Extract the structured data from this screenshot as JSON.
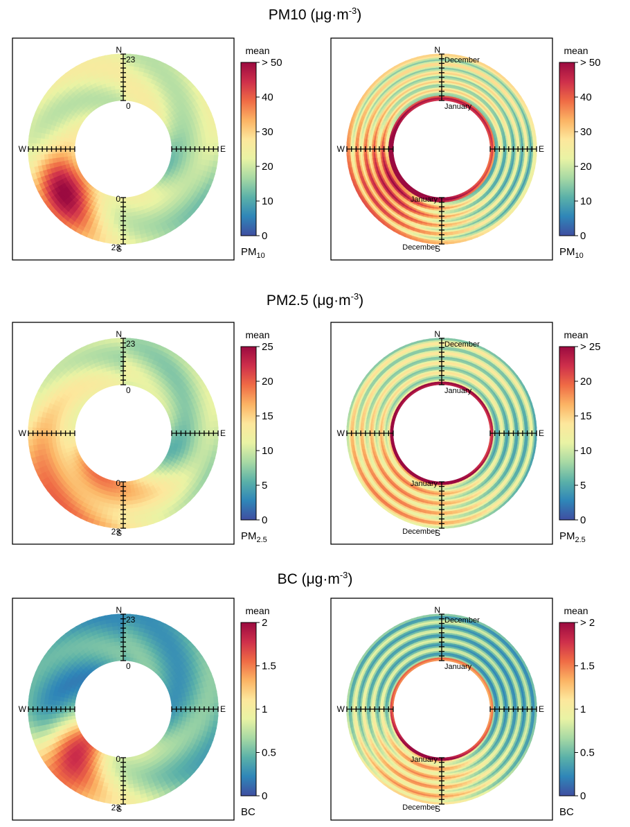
{
  "colors": {
    "palette": [
      "#3f4ea1",
      "#2f86b8",
      "#5bb1a8",
      "#a7d9a4",
      "#e9f3a4",
      "#fde79c",
      "#fbb364",
      "#ef6b45",
      "#ce2f4b",
      "#9b0a40"
    ]
  },
  "sections": [
    {
      "title": "PM10 (μg·m",
      "title_exp": "-3",
      "title_end": ")",
      "left_panel": {
        "labels": {
          "n": "N",
          "s": "S",
          "e": "E",
          "w": "W",
          "inner": "0",
          "outer": "23"
        },
        "colorbar": {
          "title": "mean",
          "ticks": [
            "> 50",
            "40",
            "30",
            "20",
            "10",
            "0"
          ],
          "label_main": "PM",
          "label_sub": "10"
        }
      },
      "right_panel": {
        "labels": {
          "n": "N",
          "s": "S",
          "e": "E",
          "w": "W",
          "inner": "January",
          "outer": "December"
        },
        "colorbar": {
          "title": "mean",
          "ticks": [
            "> 50",
            "40",
            "30",
            "20",
            "10",
            "0"
          ],
          "label_main": "PM",
          "label_sub": "10"
        }
      }
    },
    {
      "title": "PM2.5 (μg·m",
      "title_exp": "-3",
      "title_end": ")",
      "left_panel": {
        "labels": {
          "n": "N",
          "s": "S",
          "e": "E",
          "w": "W",
          "inner": "0",
          "outer": "23"
        },
        "colorbar": {
          "title": "mean",
          "ticks": [
            "25",
            "20",
            "15",
            "10",
            "5",
            "0"
          ],
          "label_main": "PM",
          "label_sub": "2.5"
        }
      },
      "right_panel": {
        "labels": {
          "n": "N",
          "s": "S",
          "e": "E",
          "w": "W",
          "inner": "January",
          "outer": "December"
        },
        "colorbar": {
          "title": "mean",
          "ticks": [
            "> 25",
            "20",
            "15",
            "10",
            "5",
            "0"
          ],
          "label_main": "PM",
          "label_sub": "2.5"
        }
      }
    },
    {
      "title": "BC (μg·m",
      "title_exp": "-3",
      "title_end": ")",
      "left_panel": {
        "labels": {
          "n": "N",
          "s": "S",
          "e": "E",
          "w": "W",
          "inner": "0",
          "outer": "23"
        },
        "colorbar": {
          "title": "mean",
          "ticks": [
            "2",
            "1.5",
            "1",
            "0.5",
            "0"
          ],
          "label_main": "BC",
          "label_sub": ""
        }
      },
      "right_panel": {
        "labels": {
          "n": "N",
          "s": "S",
          "e": "E",
          "w": "W",
          "inner": "January",
          "outer": "December"
        },
        "colorbar": {
          "title": "mean",
          "ticks": [
            "> 2",
            "1.5",
            "1",
            "0.5",
            "0"
          ],
          "label_main": "BC",
          "label_sub": ""
        }
      }
    }
  ],
  "chart_data": [
    {
      "type": "heatmap",
      "kind": "polar-annulus",
      "title": "PM10 (μg·m-3)",
      "radial": "hour of day (0 inner to 23 outer)",
      "colorbar_range": [
        0,
        50
      ],
      "directions": [
        "N",
        "E",
        "S",
        "W"
      ],
      "notable": {
        "max_sector": "SW",
        "max_value": 50,
        "typical_value": 22
      }
    },
    {
      "type": "heatmap",
      "kind": "polar-annulus",
      "title": "PM10 (μg·m-3)",
      "radial": "month (January inner to December outer)",
      "colorbar_range": [
        0,
        50
      ],
      "directions": [
        "N",
        "E",
        "S",
        "W"
      ],
      "notable": {
        "max_sector": "SW",
        "max_value": 50,
        "typical_value": 22
      }
    },
    {
      "type": "heatmap",
      "kind": "polar-annulus",
      "title": "PM2.5 (μg·m-3)",
      "radial": "hour of day (0 inner to 23 outer)",
      "colorbar_range": [
        0,
        25
      ],
      "directions": [
        "N",
        "E",
        "S",
        "W"
      ],
      "notable": {
        "max_sector": "SW",
        "max_value": 18,
        "typical_value": 12
      }
    },
    {
      "type": "heatmap",
      "kind": "polar-annulus",
      "title": "PM2.5 (μg·m-3)",
      "radial": "month (January inner to December outer)",
      "colorbar_range": [
        0,
        25
      ],
      "directions": [
        "N",
        "E",
        "S",
        "W"
      ],
      "notable": {
        "max_sector": "SW",
        "max_value": 25,
        "typical_value": 11
      }
    },
    {
      "type": "heatmap",
      "kind": "polar-annulus",
      "title": "BC (μg·m-3)",
      "radial": "hour of day (0 inner to 23 outer)",
      "colorbar_range": [
        0,
        2
      ],
      "directions": [
        "N",
        "E",
        "S",
        "W"
      ],
      "notable": {
        "max_sector": "SW",
        "max_value": 1.8,
        "typical_value": 0.6
      }
    },
    {
      "type": "heatmap",
      "kind": "polar-annulus",
      "title": "BC (μg·m-3)",
      "radial": "month (January inner to December outer)",
      "colorbar_range": [
        0,
        2
      ],
      "directions": [
        "N",
        "E",
        "S",
        "W"
      ],
      "notable": {
        "max_sector": "SW",
        "max_value": 2,
        "typical_value": 0.7
      }
    }
  ]
}
